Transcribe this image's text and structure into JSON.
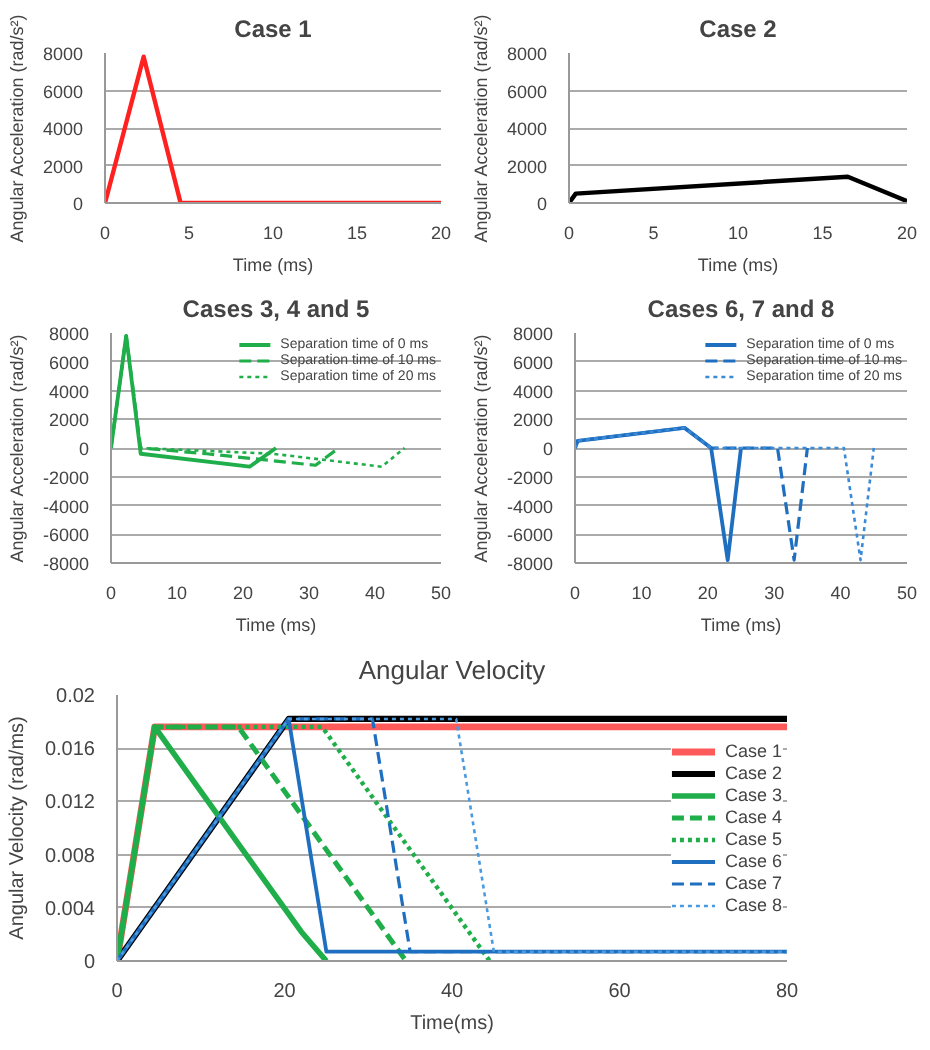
{
  "chart_data": [
    {
      "type": "line",
      "title": "Case 1",
      "xlabel": "Time (ms)",
      "ylabel": "Angular Acceleration (rad/s²)",
      "xlim": [
        0,
        20
      ],
      "ylim": [
        0,
        8000
      ],
      "xticks": [
        0,
        5,
        10,
        15,
        20
      ],
      "yticks": [
        0,
        2000,
        4000,
        6000,
        8000
      ],
      "grid": "y",
      "legend": false,
      "series": [
        {
          "color": "#ff2020",
          "x": [
            0,
            2.3,
            4.5,
            20
          ],
          "values": [
            0,
            7800,
            0,
            0
          ]
        }
      ]
    },
    {
      "type": "line",
      "title": "Case 2",
      "xlabel": "Time (ms)",
      "ylabel": "Angular Acceleration (rad/s²)",
      "xlim": [
        0,
        20
      ],
      "ylim": [
        0,
        8000
      ],
      "xticks": [
        0,
        5,
        10,
        15,
        20
      ],
      "yticks": [
        0,
        2000,
        4000,
        6000,
        8000
      ],
      "grid": "y",
      "legend": false,
      "series": [
        {
          "color": "#000000",
          "x": [
            0,
            0.4,
            16.5,
            20
          ],
          "values": [
            0,
            500,
            1400,
            100
          ]
        }
      ]
    },
    {
      "type": "line",
      "title": "Cases 3, 4 and 5",
      "xlabel": "Time (ms)",
      "ylabel": "Angular Acceleration (rad/s²)",
      "xlim": [
        0,
        50
      ],
      "ylim": [
        -8000,
        8000
      ],
      "xticks": [
        0,
        10,
        20,
        30,
        40,
        50
      ],
      "yticks": [
        -8000,
        -6000,
        -4000,
        -2000,
        0,
        2000,
        4000,
        6000,
        8000
      ],
      "grid": "y",
      "legend": "top right",
      "series": [
        {
          "name": "Separation time of 0 ms",
          "color": "#1fae4a",
          "line_style": "solid",
          "x": [
            0,
            2.3,
            4.5,
            21,
            25
          ],
          "values": [
            0,
            7800,
            -400,
            -1300,
            0
          ]
        },
        {
          "name": "Separation time of 10 ms",
          "color": "#1fae4a",
          "line_style": "dashed",
          "x": [
            0,
            2.3,
            4.5,
            14.5,
            31,
            34.5
          ],
          "values": [
            0,
            7800,
            0,
            -400,
            -1200,
            0
          ]
        },
        {
          "name": "Separation time of 20 ms",
          "color": "#1fae4a",
          "line_style": "dotted",
          "x": [
            0,
            2.3,
            4.5,
            24.5,
            41,
            44.5
          ],
          "values": [
            0,
            7800,
            0,
            -400,
            -1300,
            0
          ]
        }
      ]
    },
    {
      "type": "line",
      "title": "Cases 6, 7 and 8",
      "xlabel": "Time (ms)",
      "ylabel": "Angular Acceleration (rad/s²)",
      "xlim": [
        0,
        50
      ],
      "ylim": [
        -8000,
        8000
      ],
      "xticks": [
        0,
        10,
        20,
        30,
        40,
        50
      ],
      "yticks": [
        -8000,
        -6000,
        -4000,
        -2000,
        0,
        2000,
        4000,
        6000,
        8000
      ],
      "grid": "y",
      "legend": "top right",
      "series": [
        {
          "name": "Separation time of 0 ms",
          "color": "#1f6fc0",
          "line_style": "solid",
          "x": [
            0,
            0.4,
            16.5,
            20.5,
            23,
            25
          ],
          "values": [
            0,
            500,
            1400,
            0,
            -7800,
            0
          ]
        },
        {
          "name": "Separation time of 10 ms",
          "color": "#1f6fc0",
          "line_style": "dashed",
          "x": [
            0,
            0.4,
            16.5,
            20.5,
            30.5,
            33,
            35
          ],
          "values": [
            0,
            500,
            1400,
            0,
            0,
            -7800,
            0
          ]
        },
        {
          "name": "Separation time of 20 ms",
          "color": "#3a8ad8",
          "line_style": "dotted",
          "x": [
            0,
            0.4,
            16.5,
            20.5,
            40.5,
            43,
            45
          ],
          "values": [
            0,
            500,
            1400,
            0,
            0,
            -7800,
            0
          ]
        }
      ]
    },
    {
      "type": "line",
      "title": "Angular Velocity",
      "xlabel": "Time(ms)",
      "ylabel": "Angular Velocity (rad/ms)",
      "xlim": [
        0,
        80
      ],
      "ylim": [
        0,
        0.02
      ],
      "xticks": [
        0,
        20,
        40,
        60,
        80
      ],
      "yticks": [
        0,
        0.004,
        0.008,
        0.012,
        0.016,
        0.02
      ],
      "grid": "y",
      "legend": "right",
      "series": [
        {
          "name": "Case 1",
          "color": "#ff5a5a",
          "line_style": "solid",
          "x": [
            0,
            4.5,
            80
          ],
          "values": [
            0,
            0.0176,
            0.0176
          ]
        },
        {
          "name": "Case 2",
          "color": "#000000",
          "line_style": "solid",
          "x": [
            0,
            20.5,
            80
          ],
          "values": [
            0,
            0.0182,
            0.0182
          ]
        },
        {
          "name": "Case 3",
          "color": "#1fae4a",
          "line_style": "solid",
          "x": [
            0,
            4.5,
            22,
            25
          ],
          "values": [
            0,
            0.0176,
            0.0022,
            0
          ]
        },
        {
          "name": "Case 4",
          "color": "#1fae4a",
          "line_style": "dashed",
          "x": [
            0,
            4.5,
            14.5,
            32,
            34.5
          ],
          "values": [
            0,
            0.0176,
            0.0176,
            0.0022,
            0
          ]
        },
        {
          "name": "Case 5",
          "color": "#1fae4a",
          "line_style": "dotted",
          "x": [
            0,
            4.5,
            24.5,
            42,
            44.5
          ],
          "values": [
            0,
            0.0176,
            0.0176,
            0.0022,
            0
          ]
        },
        {
          "name": "Case 6",
          "color": "#1f6fc0",
          "line_style": "solid",
          "x": [
            0,
            20.5,
            25,
            80
          ],
          "values": [
            0,
            0.0182,
            0.0007,
            0.0007
          ]
        },
        {
          "name": "Case 7",
          "color": "#1f6fc0",
          "line_style": "dashed",
          "x": [
            0,
            20.5,
            30.5,
            35,
            80
          ],
          "values": [
            0,
            0.0182,
            0.0182,
            0.0007,
            0.0007
          ]
        },
        {
          "name": "Case 8",
          "color": "#4a9ae0",
          "line_style": "dotted",
          "x": [
            0,
            20.5,
            40.5,
            45,
            80
          ],
          "values": [
            0,
            0.0182,
            0.0182,
            0.0007,
            0.0007
          ]
        }
      ]
    }
  ]
}
